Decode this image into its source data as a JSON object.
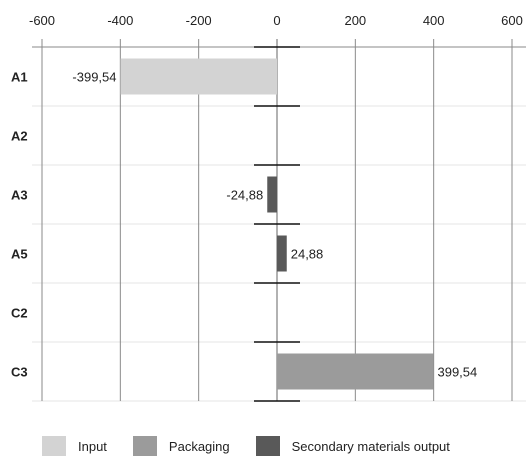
{
  "chart_data": {
    "type": "bar",
    "orientation": "horizontal",
    "categories": [
      "A1",
      "A2",
      "A3",
      "A5",
      "C2",
      "C3"
    ],
    "series": [
      {
        "name": "Input",
        "color": "#d3d3d3",
        "values": [
          -399.54,
          null,
          null,
          null,
          null,
          null
        ]
      },
      {
        "name": "Packaging",
        "color": "#9b9b9b",
        "values": [
          null,
          null,
          null,
          null,
          null,
          399.54
        ]
      },
      {
        "name": "Secondary materials output",
        "color": "#595959",
        "values": [
          null,
          null,
          -24.88,
          24.88,
          null,
          null
        ]
      }
    ],
    "data_labels": [
      "-399,54",
      "",
      "-24,88",
      "24,88",
      "",
      "399,54"
    ],
    "x_ticks": [
      "-600",
      "-400",
      "-200",
      "0",
      "200",
      "400",
      "600"
    ],
    "xlim": [
      -600,
      600
    ],
    "xaxis_position": "top",
    "grid": true,
    "legend_position": "bottom"
  }
}
